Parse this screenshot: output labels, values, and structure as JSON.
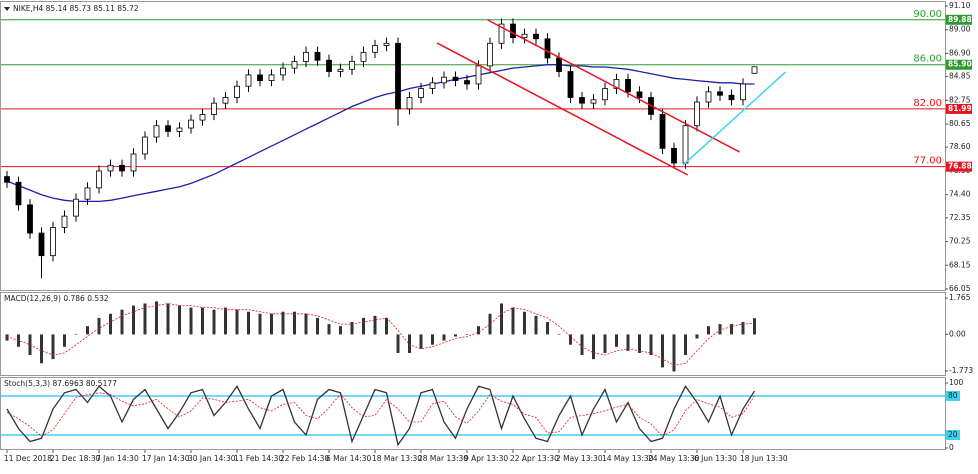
{
  "chart_data": [
    {
      "type": "candlestick",
      "title": "NIKE,H4  85.14 85.73 85.11 85.72",
      "categories": [
        "11 Dec 2018",
        null,
        null,
        null,
        "21 Dec 18:30",
        null,
        null,
        null,
        "7 Jan 14:30",
        null,
        null,
        null,
        "17 Jan 14:30",
        null,
        null,
        null,
        "30 Jan 14:30",
        null,
        null,
        null,
        "11 Feb 14:30",
        null,
        null,
        null,
        "22 Feb 14:30",
        null,
        null,
        null,
        "6 Mar 14:30",
        null,
        null,
        null,
        "18 Mar 13:30",
        null,
        null,
        null,
        "28 Mar 13:30",
        null,
        null,
        null,
        "9 Apr 13:30",
        null,
        null,
        null,
        "22 Apr 13:30",
        null,
        null,
        null,
        "2 May 13:30",
        null,
        null,
        null,
        "14 May 13:30",
        null,
        null,
        null,
        "24 May 13:30",
        null,
        null,
        null,
        "6 Jun 13:30",
        null,
        null,
        null,
        "18 Jun 13:30",
        null
      ],
      "open": [
        76,
        75.5,
        73.5,
        71,
        69,
        71.5,
        72.5,
        74,
        75,
        76.5,
        77,
        76.5,
        78,
        79.5,
        80.5,
        80,
        80.3,
        81,
        81.5,
        82.5,
        83,
        84,
        85,
        84.5,
        85,
        85.6,
        86.2,
        87,
        86.3,
        85.3,
        85.5,
        86.2,
        87,
        87.6,
        87.8,
        82,
        83,
        83.8,
        84.3,
        84.8,
        84.5,
        84.2,
        85.8,
        87.8,
        89.5,
        88.3,
        88.6,
        88.2,
        86.5,
        85.3,
        83,
        82.5,
        82.8,
        83.8,
        84.6,
        83.5,
        83,
        81.5,
        78.5,
        77.2,
        80.5,
        82.6,
        83.5,
        83.2,
        82.8,
        85.14
      ],
      "high": [
        76.5,
        76,
        74,
        71.5,
        72,
        73,
        74.5,
        75.5,
        77,
        77.5,
        77.5,
        78.5,
        80,
        81,
        81,
        80.8,
        81.5,
        82,
        83,
        83.5,
        84.5,
        85.5,
        85.5,
        85.5,
        86.1,
        86.7,
        87.5,
        87.5,
        86.8,
        86,
        86.7,
        87.5,
        88.1,
        88.3,
        88.3,
        83.5,
        84.3,
        84.8,
        85.3,
        85.3,
        85,
        86.3,
        88.3,
        90,
        90,
        89.1,
        89.1,
        88.7,
        87,
        85.8,
        83.5,
        83.3,
        84.3,
        85.1,
        85.1,
        84,
        83.5,
        82,
        79,
        81,
        83.1,
        84,
        84,
        83.7,
        84.7,
        85.73
      ],
      "low": [
        75,
        73,
        70.5,
        67,
        68.5,
        71,
        72,
        73.5,
        74.5,
        76,
        76,
        76,
        77.5,
        79,
        79.5,
        79.5,
        79.8,
        80.5,
        81,
        82,
        82.5,
        83.5,
        84,
        84,
        84.5,
        85.1,
        85.7,
        85.8,
        84.8,
        84.8,
        85,
        85.7,
        86.5,
        87.1,
        80.5,
        81.5,
        82.5,
        83.3,
        83.8,
        84,
        83.7,
        83.7,
        85.3,
        87.3,
        87.8,
        87.8,
        87.7,
        86,
        84.8,
        82.5,
        82,
        82,
        82.3,
        83.3,
        83,
        82.5,
        81,
        78,
        76.7,
        76.7,
        80,
        82.1,
        82.7,
        82.3,
        82.3,
        85.11
      ],
      "close": [
        75.5,
        73.5,
        71,
        69,
        71.5,
        72.5,
        74,
        75,
        76.5,
        77,
        76.5,
        78,
        79.5,
        80.5,
        80,
        80.3,
        81,
        81.5,
        82.5,
        83,
        84,
        85,
        84.5,
        85,
        85.6,
        86.2,
        87,
        86.3,
        85.3,
        85.5,
        86.2,
        87,
        87.6,
        87.8,
        82,
        83,
        83.8,
        84.3,
        84.8,
        84.5,
        84.2,
        85.8,
        87.8,
        89.5,
        88.3,
        88.6,
        88.2,
        86.5,
        85.3,
        83,
        82.5,
        82.8,
        83.8,
        84.6,
        83.5,
        83,
        81.5,
        78.5,
        77.2,
        80.5,
        82.6,
        83.5,
        83.2,
        82.8,
        84.2,
        85.72
      ],
      "up_color": "#ffffff",
      "down_color": "#000000",
      "wick_color": "#000000",
      "lines": [
        {
          "color": "#1c22a8",
          "values": [
            75.6,
            75.2,
            74.8,
            74.4,
            74.1,
            73.9,
            73.8,
            73.8,
            73.8,
            73.9,
            74.1,
            74.3,
            74.5,
            74.7,
            74.9,
            75.1,
            75.4,
            75.8,
            76.2,
            76.7,
            77.2,
            77.7,
            78.2,
            78.7,
            79.2,
            79.7,
            80.2,
            80.7,
            81.2,
            81.7,
            82.2,
            82.6,
            83,
            83.3,
            83.5,
            83.8,
            84,
            84.2,
            84.4,
            84.6,
            84.8,
            85,
            85.2,
            85.4,
            85.6,
            85.7,
            85.8,
            85.9,
            85.9,
            85.8,
            85.8,
            85.7,
            85.7,
            85.6,
            85.5,
            85.3,
            85.1,
            84.9,
            84.7,
            84.6,
            84.5,
            84.4,
            84.3,
            84.3,
            84.2,
            84.2
          ]
        }
      ],
      "levels": [
        {
          "value": 89.88,
          "tag": "89.88",
          "label": "90.00",
          "color": "#2e9a2e"
        },
        {
          "value": 85.9,
          "tag": "85.90",
          "label": "86.00",
          "color": "#2e9a2e"
        },
        {
          "value": 81.99,
          "tag": "81.99",
          "label": "82.00",
          "color": "#e8141e"
        },
        {
          "value": 76.88,
          "tag": "76.88",
          "label": "77.00",
          "color": "#e8141e"
        }
      ],
      "trendlines": [
        {
          "color": "#e8141e",
          "x": [
            37.4,
            59.2
          ],
          "y": [
            87.82,
            76.14
          ]
        },
        {
          "color": "#e8141e",
          "x": [
            41.8,
            63.7
          ],
          "y": [
            89.86,
            78.18
          ]
        },
        {
          "color": "#3cd2f0",
          "x": [
            58.8,
            67.7
          ],
          "y": [
            77.03,
            85.26
          ]
        }
      ],
      "ylim": [
        66.05,
        91.1
      ],
      "yticks": [
        {
          "value": 91.1,
          "label": "91.10"
        },
        {
          "value": 89,
          "label": "89.00"
        },
        {
          "value": 86.9,
          "label": "86.90"
        },
        84.85,
        82.75,
        80.65,
        {
          "value": 78.6,
          "label": "78.60"
        },
        {
          "value": 76.5,
          "label": "76.50"
        },
        {
          "value": 74.4,
          "label": "74.40"
        },
        72.35,
        70.25,
        68.15,
        66.05
      ]
    },
    {
      "type": "bar",
      "title": "MACD(12,26,9) 0.786 0.532",
      "color": "#333333",
      "values": [
        -0.3,
        -0.6,
        -1.0,
        -1.4,
        -1.2,
        -0.6,
        0.0,
        0.4,
        0.8,
        1.0,
        1.2,
        1.4,
        1.5,
        1.6,
        1.5,
        1.4,
        1.3,
        1.3,
        1.2,
        1.3,
        1.2,
        1.1,
        1.0,
        1.0,
        1.1,
        1.1,
        1.0,
        0.8,
        0.5,
        0.4,
        0.6,
        0.8,
        0.9,
        0.8,
        -0.9,
        -0.9,
        -0.7,
        -0.5,
        -0.3,
        -0.1,
        0.0,
        0.4,
        1.0,
        1.5,
        1.3,
        1.1,
        0.9,
        0.6,
        0.0,
        -0.5,
        -1.0,
        -1.2,
        -0.9,
        -0.6,
        -0.8,
        -0.9,
        -1.0,
        -1.6,
        -1.8,
        -1.0,
        -0.2,
        0.4,
        0.5,
        0.5,
        0.6,
        0.786
      ],
      "lines": [
        {
          "color": "#e8141e",
          "dash": true,
          "values": [
            -0.1,
            -0.3,
            -0.5,
            -0.8,
            -1.0,
            -0.9,
            -0.5,
            -0.1,
            0.3,
            0.6,
            0.9,
            1.1,
            1.3,
            1.4,
            1.5,
            1.4,
            1.4,
            1.3,
            1.3,
            1.2,
            1.2,
            1.2,
            1.1,
            1.0,
            1.0,
            1.0,
            1.0,
            0.9,
            0.7,
            0.5,
            0.5,
            0.6,
            0.7,
            0.8,
            0.2,
            -0.5,
            -0.7,
            -0.6,
            -0.4,
            -0.2,
            -0.1,
            0.1,
            0.5,
            1.0,
            1.3,
            1.2,
            1.0,
            0.8,
            0.4,
            -0.1,
            -0.6,
            -0.9,
            -1.0,
            -0.8,
            -0.7,
            -0.8,
            -0.9,
            -1.2,
            -1.5,
            -1.4,
            -0.8,
            -0.2,
            0.2,
            0.4,
            0.5,
            0.532
          ]
        }
      ],
      "ylim": [
        -1.97,
        1.96
      ],
      "yticks": [
        1.765,
        {
          "value": 0,
          "label": "0.00"
        },
        -1.773
      ]
    },
    {
      "type": "line",
      "title": "Stoch(5,3,3) 87.6963 80.5177",
      "series": [
        {
          "color": "#333333",
          "values": [
            60,
            30,
            10,
            15,
            60,
            85,
            90,
            70,
            95,
            80,
            40,
            75,
            90,
            60,
            30,
            55,
            85,
            90,
            50,
            70,
            95,
            60,
            30,
            80,
            90,
            40,
            20,
            75,
            90,
            85,
            10,
            50,
            90,
            85,
            5,
            30,
            85,
            90,
            40,
            15,
            60,
            95,
            90,
            30,
            80,
            45,
            15,
            10,
            50,
            80,
            20,
            60,
            90,
            40,
            70,
            30,
            10,
            15,
            60,
            95,
            70,
            40,
            80,
            20,
            60,
            87.6963
          ]
        },
        {
          "color": "#e8141e",
          "dash": true,
          "values": [
            55,
            45,
            33,
            18,
            28,
            53,
            78,
            82,
            85,
            82,
            72,
            65,
            68,
            75,
            60,
            48,
            57,
            77,
            75,
            70,
            72,
            75,
            62,
            57,
            67,
            70,
            50,
            45,
            62,
            83,
            62,
            48,
            50,
            75,
            60,
            40,
            40,
            68,
            72,
            48,
            38,
            57,
            82,
            72,
            67,
            52,
            47,
            23,
            25,
            47,
            50,
            53,
            57,
            63,
            67,
            47,
            37,
            18,
            28,
            57,
            75,
            68,
            63,
            47,
            53,
            80.5177
          ]
        }
      ],
      "levels": [
        80,
        20
      ],
      "level_color": "#3cd2f0",
      "ylim": [
        0,
        100
      ],
      "yticks": [
        100,
        0
      ]
    }
  ]
}
